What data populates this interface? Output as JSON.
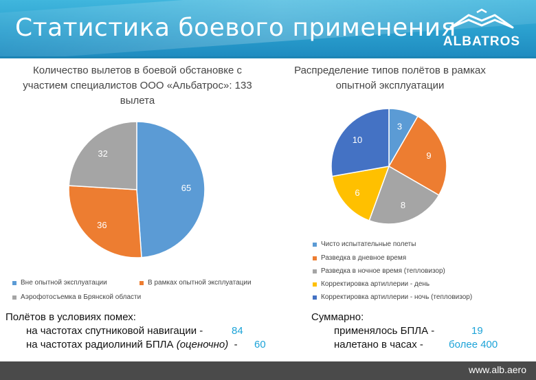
{
  "header": {
    "title": "Статистика боевого применения",
    "logo_text": "ALBATROS",
    "color": "#2a9fce"
  },
  "chart_data": [
    {
      "type": "pie",
      "title": "Количество вылетов в боевой обстановке с участием специалистов ООО «Альбатрос»: 133 вылета",
      "title_lines": [
        "Количество вылетов в боевой обстановке с",
        "участием специалистов ООО «Альбатрос»: 133",
        "вылета"
      ],
      "categories": [
        "Вне опытной эксплуатации",
        "В рамках опытной эксплуатации",
        "Аэрофотосъемка в Брянской области"
      ],
      "values": [
        65,
        36,
        32
      ],
      "colors": [
        "#5b9bd5",
        "#ed7d31",
        "#a5a5a5"
      ]
    },
    {
      "type": "pie",
      "title": "Распределение типов полётов в рамках опытной эксплуатации",
      "title_lines": [
        "Распределение типов полётов в рамках",
        "опытной эксплуатации"
      ],
      "categories": [
        "Чисто испытательные полеты",
        "Разведка в дневное время",
        "Разведка в ночное время (тепловизор)",
        "Корректировка артиллерии - день",
        "Корректировка артиллерии - ночь (тепловизор)"
      ],
      "values": [
        3,
        9,
        8,
        6,
        10
      ],
      "colors": [
        "#5b9bd5",
        "#ed7d31",
        "#a5a5a5",
        "#ffc000",
        "#4472c4"
      ]
    }
  ],
  "interference": {
    "heading": "Полётов в условиях помех:",
    "rows": [
      {
        "label": "на частотах спутниковой навигации -",
        "value": "84"
      },
      {
        "label": "на частотах радиолиний БПЛА",
        "label_italic": "(оценочно)",
        "label_suffix": "-",
        "value": "60"
      }
    ]
  },
  "summary": {
    "heading": "Суммарно:",
    "rows": [
      {
        "label": "применялось БПЛА -",
        "value": "19"
      },
      {
        "label": "налетано в часах -",
        "value": "более 400"
      }
    ]
  },
  "footer": {
    "url": "www.alb.aero"
  }
}
